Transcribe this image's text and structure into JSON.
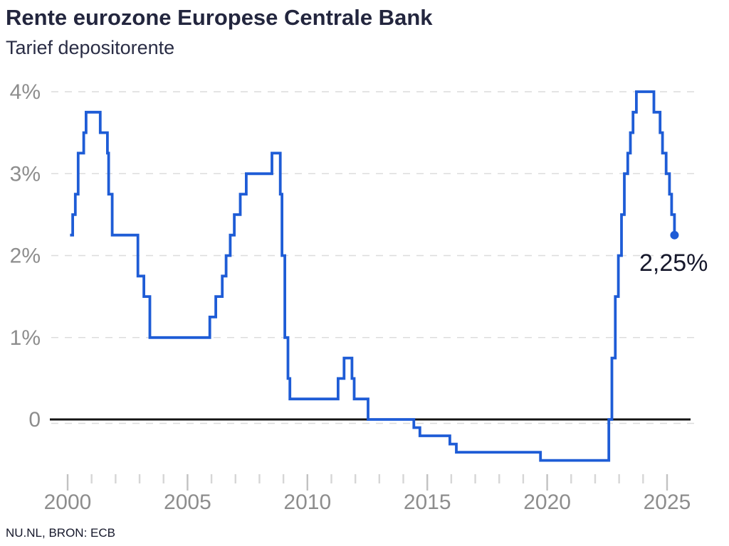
{
  "header": {
    "title": "Rente eurozone Europese Centrale Bank",
    "subtitle": "Tarief depositorente"
  },
  "footer": {
    "source": "NU.NL, BRON: ECB"
  },
  "colors": {
    "line": "#1e5cd6",
    "title_text": "#23263e",
    "axis_label": "#8d8d8d",
    "grid_line": "#dcdcdc",
    "zero_line": "#141414",
    "tick_minor": "#d6d6d6",
    "tick_major": "#c2c2c2",
    "annotation_text": "#16182b",
    "background": "#ffffff"
  },
  "chart_data": {
    "type": "line",
    "step": true,
    "title": "Rente eurozone Europese Centrale Bank",
    "subtitle": "Tarief depositorente",
    "xlabel": "",
    "ylabel": "",
    "unit": "%",
    "xlim": [
      2000,
      2025.7
    ],
    "ylim": [
      -0.5,
      4
    ],
    "grid": "horizontal-dashed",
    "legend": "none",
    "y_ticks": [
      {
        "value": 4,
        "label": "4%"
      },
      {
        "value": 3,
        "label": "3%"
      },
      {
        "value": 2,
        "label": "2%"
      },
      {
        "value": 1,
        "label": "1%"
      },
      {
        "value": 0,
        "label": "0"
      }
    ],
    "x_tick_years": [
      2000,
      2001,
      2002,
      2003,
      2004,
      2005,
      2006,
      2007,
      2008,
      2009,
      2010,
      2011,
      2012,
      2013,
      2014,
      2015,
      2016,
      2017,
      2018,
      2019,
      2020,
      2021,
      2022,
      2023,
      2024,
      2025
    ],
    "x_major_ticks": [
      {
        "value": 2000,
        "label": "2000"
      },
      {
        "value": 2005,
        "label": "2005"
      },
      {
        "value": 2010,
        "label": "2010"
      },
      {
        "value": 2015,
        "label": "2015"
      },
      {
        "value": 2020,
        "label": "2020"
      },
      {
        "value": 2025,
        "label": "2025"
      }
    ],
    "series": [
      {
        "name": "Tarief depositorente",
        "points": [
          [
            2000.1,
            2.25
          ],
          [
            2000.21,
            2.5
          ],
          [
            2000.32,
            2.75
          ],
          [
            2000.44,
            3.25
          ],
          [
            2000.67,
            3.5
          ],
          [
            2000.77,
            3.75
          ],
          [
            2001.36,
            3.5
          ],
          [
            2001.66,
            3.25
          ],
          [
            2001.71,
            2.75
          ],
          [
            2001.86,
            2.25
          ],
          [
            2002.93,
            1.75
          ],
          [
            2003.18,
            1.5
          ],
          [
            2003.43,
            1.0
          ],
          [
            2005.93,
            1.25
          ],
          [
            2006.18,
            1.5
          ],
          [
            2006.45,
            1.75
          ],
          [
            2006.61,
            2.0
          ],
          [
            2006.78,
            2.25
          ],
          [
            2006.95,
            2.5
          ],
          [
            2007.2,
            2.75
          ],
          [
            2007.45,
            3.0
          ],
          [
            2008.52,
            3.25
          ],
          [
            2008.87,
            2.75
          ],
          [
            2008.94,
            2.0
          ],
          [
            2009.06,
            1.0
          ],
          [
            2009.19,
            0.5
          ],
          [
            2009.27,
            0.25
          ],
          [
            2011.28,
            0.5
          ],
          [
            2011.53,
            0.75
          ],
          [
            2011.86,
            0.5
          ],
          [
            2011.95,
            0.25
          ],
          [
            2012.53,
            0.0
          ],
          [
            2014.44,
            -0.1
          ],
          [
            2014.69,
            -0.2
          ],
          [
            2015.94,
            -0.3
          ],
          [
            2016.21,
            -0.4
          ],
          [
            2019.72,
            -0.5
          ],
          [
            2022.57,
            0.0
          ],
          [
            2022.7,
            0.75
          ],
          [
            2022.84,
            1.5
          ],
          [
            2022.97,
            2.0
          ],
          [
            2023.1,
            2.5
          ],
          [
            2023.22,
            3.0
          ],
          [
            2023.36,
            3.25
          ],
          [
            2023.47,
            3.5
          ],
          [
            2023.58,
            3.75
          ],
          [
            2023.72,
            4.0
          ],
          [
            2024.45,
            3.75
          ],
          [
            2024.71,
            3.5
          ],
          [
            2024.81,
            3.25
          ],
          [
            2024.96,
            3.0
          ],
          [
            2025.1,
            2.75
          ],
          [
            2025.19,
            2.5
          ],
          [
            2025.31,
            2.25
          ]
        ]
      }
    ],
    "end_point": {
      "year": 2025.31,
      "value": 2.25,
      "label": "2,25%"
    }
  }
}
